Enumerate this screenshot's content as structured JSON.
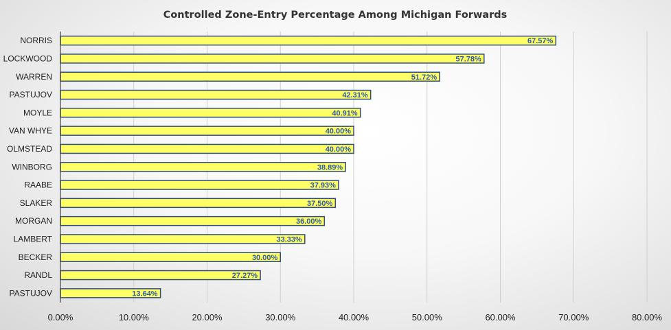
{
  "chart_data": {
    "type": "bar",
    "orientation": "horizontal",
    "title": "Controlled Zone-Entry Percentage Among Michigan Forwards",
    "xlabel": "",
    "ylabel": "",
    "categories": [
      "NORRIS",
      "LOCKWOOD",
      "WARREN",
      "PASTUJOV",
      "MOYLE",
      "VAN WHYE",
      "OLMSTEAD",
      "WINBORG",
      "RAABE",
      "SLAKER",
      "MORGAN",
      "LAMBERT",
      "BECKER",
      "RANDL",
      "PASTUJOV"
    ],
    "values": [
      67.57,
      57.78,
      51.72,
      42.31,
      40.91,
      40.0,
      40.0,
      38.89,
      37.93,
      37.5,
      36.0,
      33.33,
      30.0,
      27.27,
      13.64
    ],
    "data_labels": [
      "67.57%",
      "57.78%",
      "51.72%",
      "42.31%",
      "40.91%",
      "40.00%",
      "40.00%",
      "38.89%",
      "37.93%",
      "37.50%",
      "36.00%",
      "33.33%",
      "30.00%",
      "27.27%",
      "13.64%"
    ],
    "xlim": [
      0,
      80
    ],
    "x_ticks": [
      0,
      10,
      20,
      30,
      40,
      50,
      60,
      70,
      80
    ],
    "x_tick_labels": [
      "0.00%",
      "10.00%",
      "20.00%",
      "30.00%",
      "40.00%",
      "50.00%",
      "60.00%",
      "70.00%",
      "80.00%"
    ],
    "grid": true,
    "legend": "none",
    "colors": {
      "bar_fill": "#ffff66",
      "bar_border": "#2f4e7e",
      "data_label": "#2a59a8",
      "gridline": "#cfcfcf"
    }
  }
}
